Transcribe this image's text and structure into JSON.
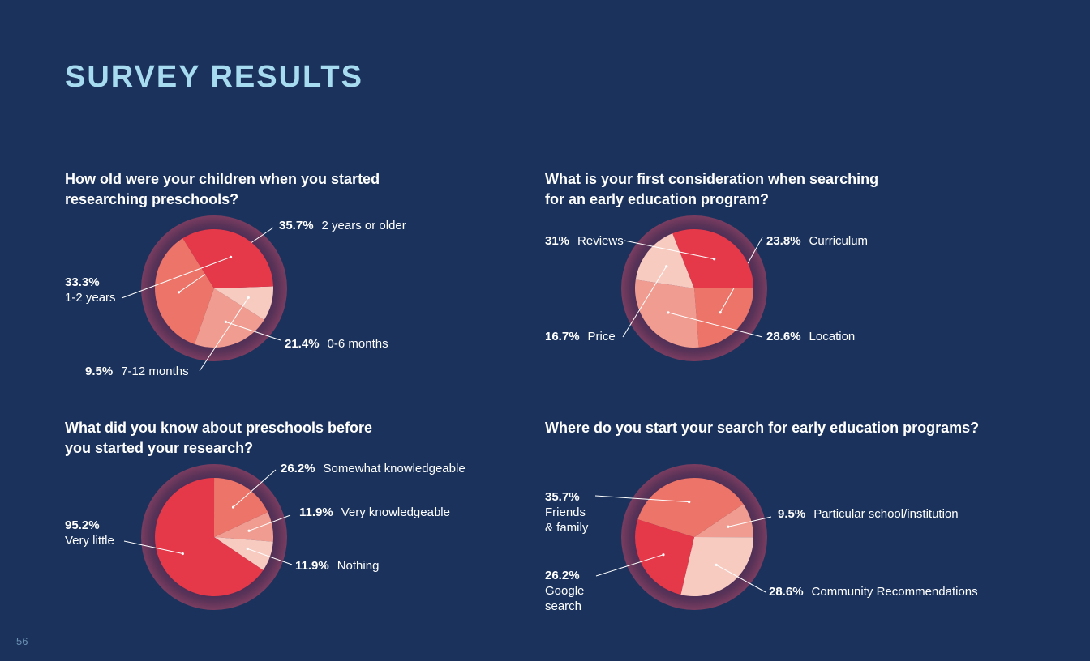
{
  "page": {
    "title": "SURVEY RESULTS",
    "page_number": "56"
  },
  "colors": {
    "background": "#1b335c",
    "title": "#a6dbf0",
    "slice_coral": "#ec7468",
    "slice_red": "#e5394a",
    "slice_salmon": "#f19c90",
    "slice_pink": "#f8cbc1",
    "ring": "#5b3358"
  },
  "chart_data": [
    {
      "type": "pie",
      "title": "How old were your children when you started\nresearching preschools?",
      "slices": [
        {
          "label": "2 years or older",
          "value": 35.7,
          "display": "35.7%",
          "color": "#ec7468"
        },
        {
          "label": "0-6 months",
          "value": 21.4,
          "display": "21.4%",
          "color": "#f19c90"
        },
        {
          "label": "7-12 months",
          "value": 9.5,
          "display": "9.5%",
          "color": "#f8cbc1"
        },
        {
          "label": "1-2 years",
          "value": 33.3,
          "display": "33.3%",
          "color": "#e5394a"
        }
      ]
    },
    {
      "type": "pie",
      "title": "What is your first consideration when searching\nfor an early education program?",
      "slices": [
        {
          "label": "Curriculum",
          "value": 23.8,
          "display": "23.8%",
          "color": "#ec7468"
        },
        {
          "label": "Location",
          "value": 28.6,
          "display": "28.6%",
          "color": "#f19c90"
        },
        {
          "label": "Price",
          "value": 16.7,
          "display": "16.7%",
          "color": "#f8cbc1"
        },
        {
          "label": "Reviews",
          "value": 31,
          "display": "31%",
          "color": "#e5394a"
        }
      ]
    },
    {
      "type": "pie",
      "title": "What did you know about preschools before\nyou started your research?",
      "slices": [
        {
          "label": "Very knowledgeable",
          "value": 11.9,
          "display": "11.9%",
          "color": "#f19c90"
        },
        {
          "label": "Nothing",
          "value": 11.9,
          "display": "11.9%",
          "color": "#f8cbc1"
        },
        {
          "label": "Very little",
          "value": 95.2,
          "display": "95.2%",
          "color": "#e5394a"
        },
        {
          "label": "Somewhat knowledgeable",
          "value": 26.2,
          "display": "26.2%",
          "color": "#ec7468"
        }
      ]
    },
    {
      "type": "pie",
      "title": "Where do you start your search for early education programs?",
      "slices": [
        {
          "label": "Particular school/institution",
          "value": 9.5,
          "display": "9.5%",
          "color": "#f19c90"
        },
        {
          "label": "Community Recommendations",
          "value": 28.6,
          "display": "28.6%",
          "color": "#f8cbc1"
        },
        {
          "label": "Google\nsearch",
          "value": 26.2,
          "display": "26.2%",
          "color": "#e5394a"
        },
        {
          "label": "Friends\n& family",
          "value": 35.7,
          "display": "35.7%",
          "color": "#ec7468"
        }
      ]
    }
  ]
}
